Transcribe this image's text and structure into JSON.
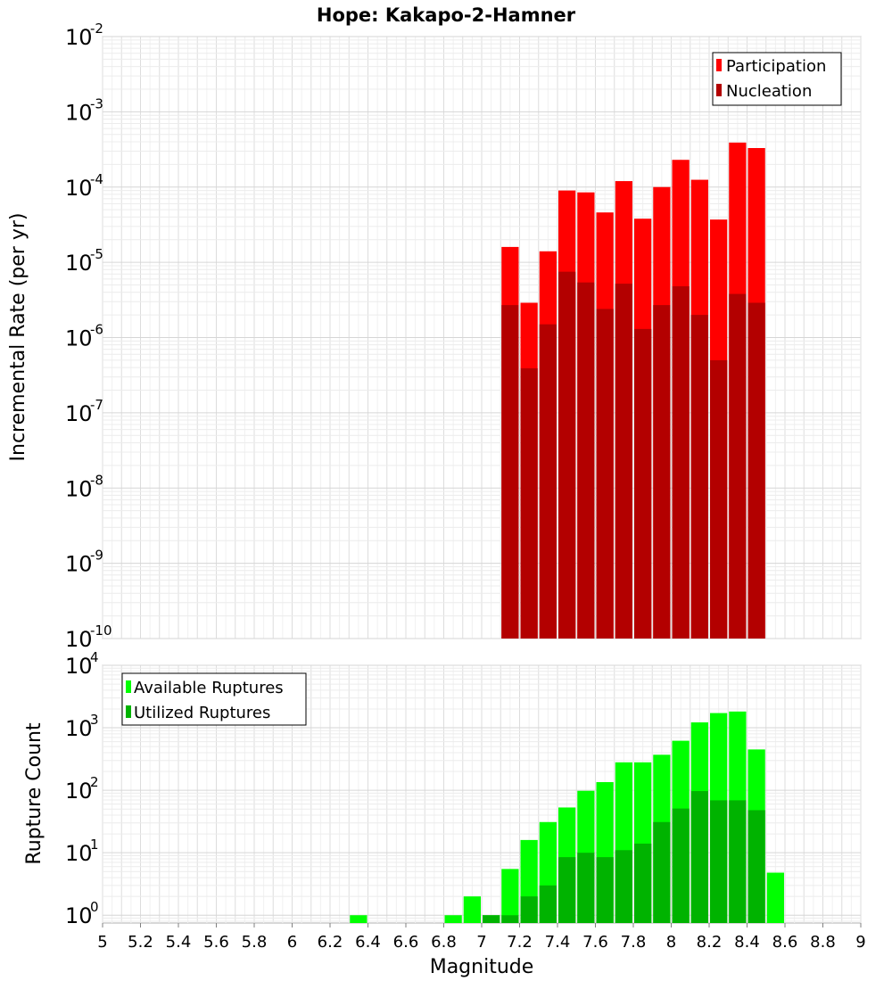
{
  "chart_data": [
    {
      "type": "bar",
      "title": "Hope: Kakapo-2-Hamner",
      "xlabel": "",
      "ylabel": "Incremental Rate (per yr)",
      "yscale": "log",
      "ylim": [
        1e-10,
        0.01
      ],
      "xlim": [
        5,
        9
      ],
      "grid": true,
      "legend": "top-right",
      "bin_width": 0.1,
      "ytick_labels": [
        {
          "base": "10",
          "exp": "-10"
        },
        {
          "base": "10",
          "exp": "-9"
        },
        {
          "base": "10",
          "exp": "-8"
        },
        {
          "base": "10",
          "exp": "-7"
        },
        {
          "base": "10",
          "exp": "-6"
        },
        {
          "base": "10",
          "exp": "-5"
        },
        {
          "base": "10",
          "exp": "-4"
        },
        {
          "base": "10",
          "exp": "-3"
        },
        {
          "base": "10",
          "exp": "-2"
        }
      ],
      "x": [
        7.15,
        7.25,
        7.35,
        7.45,
        7.55,
        7.65,
        7.75,
        7.85,
        7.95,
        8.05,
        8.15,
        8.25,
        8.35,
        8.45
      ],
      "series": [
        {
          "name": "Participation",
          "color": "#ff0000",
          "values": [
            1.6e-05,
            2.9e-06,
            1.4e-05,
            9e-05,
            8.5e-05,
            4.6e-05,
            0.00012,
            3.8e-05,
            0.0001,
            0.00023,
            0.000125,
            3.7e-05,
            0.00039,
            0.00033
          ]
        },
        {
          "name": "Nucleation",
          "color": "#b30000",
          "values": [
            2.7e-06,
            3.9e-07,
            1.5e-06,
            7.5e-06,
            5.4e-06,
            2.4e-06,
            5.2e-06,
            1.3e-06,
            2.7e-06,
            4.8e-06,
            2e-06,
            5e-07,
            3.8e-06,
            2.9e-06
          ]
        }
      ]
    },
    {
      "type": "bar",
      "title": "",
      "xlabel": "Magnitude",
      "ylabel": "Rupture Count",
      "yscale": "log",
      "ylim": [
        0.75,
        10000
      ],
      "xlim": [
        5,
        9
      ],
      "grid": true,
      "legend": "top-left",
      "bin_width": 0.1,
      "ytick_labels": [
        {
          "base": "10",
          "exp": "0"
        },
        {
          "base": "10",
          "exp": "1"
        },
        {
          "base": "10",
          "exp": "2"
        },
        {
          "base": "10",
          "exp": "3"
        },
        {
          "base": "10",
          "exp": "4"
        }
      ],
      "xtick_labels": [
        "5",
        "5.2",
        "5.4",
        "5.6",
        "5.8",
        "6",
        "6.2",
        "6.4",
        "6.6",
        "6.8",
        "7",
        "7.2",
        "7.4",
        "7.6",
        "7.8",
        "8",
        "8.2",
        "8.4",
        "8.6",
        "8.8",
        "9"
      ],
      "x": [
        6.35,
        6.85,
        6.95,
        7.05,
        7.15,
        7.25,
        7.35,
        7.45,
        7.55,
        7.65,
        7.75,
        7.85,
        7.95,
        8.05,
        8.15,
        8.25,
        8.35,
        8.45,
        8.55
      ],
      "series": [
        {
          "name": "Available Ruptures",
          "color": "#00ff00",
          "values": [
            1,
            1,
            2,
            1,
            5.5,
            16,
            31,
            53,
            98,
            135,
            280,
            280,
            370,
            620,
            1220,
            1720,
            1820,
            450,
            4.8
          ]
        },
        {
          "name": "Utilized Ruptures",
          "color": "#00b300",
          "values": [
            null,
            null,
            null,
            1,
            1,
            2,
            3,
            8.5,
            10,
            8.5,
            11,
            14,
            31,
            51,
            97,
            69,
            69,
            48,
            null
          ]
        }
      ]
    }
  ]
}
